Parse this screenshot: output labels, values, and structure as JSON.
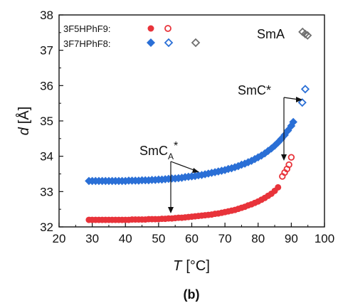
{
  "chart_data": {
    "type": "scatter",
    "xlabel_symbol": "T",
    "xlabel_unit": "[°C]",
    "ylabel_symbol": "d",
    "ylabel_unit": "[Å]",
    "xlim": [
      20,
      100
    ],
    "ylim": [
      32,
      38
    ],
    "x_ticks": [
      "20",
      "30",
      "40",
      "50",
      "60",
      "70",
      "80",
      "90",
      "100"
    ],
    "y_ticks": [
      "32",
      "33",
      "34",
      "35",
      "36",
      "37",
      "38"
    ],
    "panel_label": "(b)",
    "phase_labels": {
      "smca_main": "SmC",
      "smca_sub": "A",
      "smca_sup": "*",
      "smc": "SmC*",
      "sma": "SmA"
    },
    "series": [
      {
        "name": "3F5HPhF9:",
        "color": "#e8333a",
        "marker": "circle",
        "filled": [
          [
            29,
            32.2
          ],
          [
            30,
            32.2
          ],
          [
            31,
            32.2
          ],
          [
            32,
            32.2
          ],
          [
            33,
            32.2
          ],
          [
            34,
            32.2
          ],
          [
            35,
            32.2
          ],
          [
            36,
            32.2
          ],
          [
            37,
            32.2
          ],
          [
            38,
            32.2
          ],
          [
            39,
            32.2
          ],
          [
            40,
            32.2
          ],
          [
            41,
            32.2
          ],
          [
            42,
            32.21
          ],
          [
            43,
            32.21
          ],
          [
            44,
            32.21
          ],
          [
            45,
            32.21
          ],
          [
            46,
            32.21
          ],
          [
            47,
            32.22
          ],
          [
            48,
            32.22
          ],
          [
            49,
            32.22
          ],
          [
            50,
            32.22
          ],
          [
            51,
            32.23
          ],
          [
            52,
            32.23
          ],
          [
            53,
            32.24
          ],
          [
            54,
            32.24
          ],
          [
            55,
            32.25
          ],
          [
            56,
            32.26
          ],
          [
            57,
            32.26
          ],
          [
            58,
            32.27
          ],
          [
            59,
            32.28
          ],
          [
            60,
            32.29
          ],
          [
            61,
            32.3
          ],
          [
            62,
            32.31
          ],
          [
            63,
            32.32
          ],
          [
            64,
            32.33
          ],
          [
            65,
            32.34
          ],
          [
            66,
            32.35
          ],
          [
            67,
            32.37
          ],
          [
            68,
            32.38
          ],
          [
            69,
            32.4
          ],
          [
            70,
            32.42
          ],
          [
            71,
            32.44
          ],
          [
            72,
            32.46
          ],
          [
            73,
            32.48
          ],
          [
            74,
            32.51
          ],
          [
            75,
            32.54
          ],
          [
            76,
            32.57
          ],
          [
            77,
            32.61
          ],
          [
            78,
            32.64
          ],
          [
            79,
            32.68
          ],
          [
            80,
            32.72
          ],
          [
            81,
            32.77
          ],
          [
            82,
            32.82
          ],
          [
            83,
            32.88
          ],
          [
            84,
            32.94
          ],
          [
            85,
            33.02
          ],
          [
            86,
            33.12
          ]
        ],
        "open": [
          [
            87.3,
            33.43
          ],
          [
            88,
            33.54
          ],
          [
            88.7,
            33.64
          ],
          [
            89.3,
            33.76
          ],
          [
            90,
            33.97
          ]
        ]
      },
      {
        "name": "3F7HPhF8:",
        "color": "#2a6fd6",
        "marker": "diamond",
        "filled": [
          [
            29,
            33.3
          ],
          [
            30,
            33.3
          ],
          [
            31,
            33.3
          ],
          [
            32,
            33.3
          ],
          [
            33,
            33.3
          ],
          [
            34,
            33.3
          ],
          [
            35,
            33.3
          ],
          [
            36,
            33.3
          ],
          [
            37,
            33.3
          ],
          [
            38,
            33.3
          ],
          [
            39,
            33.3
          ],
          [
            40,
            33.3
          ],
          [
            41,
            33.31
          ],
          [
            42,
            33.31
          ],
          [
            43,
            33.31
          ],
          [
            44,
            33.31
          ],
          [
            45,
            33.32
          ],
          [
            46,
            33.32
          ],
          [
            47,
            33.32
          ],
          [
            48,
            33.33
          ],
          [
            49,
            33.33
          ],
          [
            50,
            33.34
          ],
          [
            51,
            33.34
          ],
          [
            52,
            33.35
          ],
          [
            53,
            33.36
          ],
          [
            54,
            33.37
          ],
          [
            55,
            33.37
          ],
          [
            56,
            33.38
          ],
          [
            57,
            33.39
          ],
          [
            58,
            33.41
          ],
          [
            59,
            33.42
          ],
          [
            60,
            33.43
          ],
          [
            61,
            33.44
          ],
          [
            62,
            33.46
          ],
          [
            63,
            33.47
          ],
          [
            64,
            33.49
          ],
          [
            65,
            33.51
          ],
          [
            66,
            33.53
          ],
          [
            67,
            33.55
          ],
          [
            68,
            33.57
          ],
          [
            69,
            33.59
          ],
          [
            70,
            33.61
          ],
          [
            71,
            33.64
          ],
          [
            72,
            33.66
          ],
          [
            73,
            33.69
          ],
          [
            74,
            33.72
          ],
          [
            75,
            33.76
          ],
          [
            76,
            33.79
          ],
          [
            77,
            33.83
          ],
          [
            78,
            33.87
          ],
          [
            79,
            33.92
          ],
          [
            80,
            33.97
          ],
          [
            81,
            34.02
          ],
          [
            82,
            34.08
          ],
          [
            83,
            34.15
          ],
          [
            84,
            34.22
          ],
          [
            85,
            34.3
          ],
          [
            86,
            34.39
          ],
          [
            87,
            34.49
          ],
          [
            88,
            34.6
          ],
          [
            89,
            34.73
          ],
          [
            90,
            34.86
          ],
          [
            90.6,
            34.97
          ]
        ],
        "open": [
          [
            93.3,
            35.52
          ],
          [
            94.2,
            35.9
          ]
        ]
      },
      {
        "name": "",
        "color": "#6f6f6f",
        "marker": "diamond",
        "filled": [],
        "open": [
          [
            93.4,
            37.52
          ],
          [
            94.2,
            37.46
          ],
          [
            94.9,
            37.42
          ]
        ]
      }
    ]
  }
}
